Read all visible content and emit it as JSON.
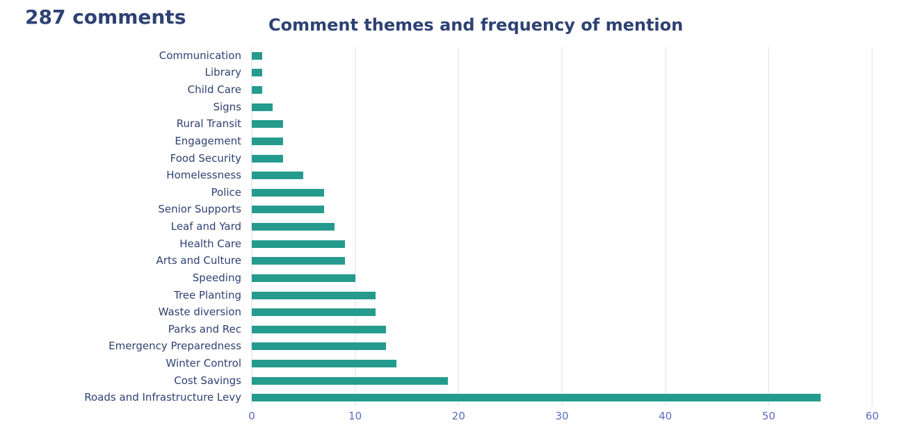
{
  "header": {
    "comment_count_label": "287 comments",
    "title": "Comment themes and frequency of mention"
  },
  "colors": {
    "bar": "#259B8E",
    "heading_text": "#2E4172",
    "category_text": "#2E4172",
    "tick_text": "#5B6BBE",
    "gridline": "#D9DEF3",
    "background": "#FFFFFF"
  },
  "chart_data": {
    "type": "bar",
    "orientation": "horizontal",
    "title": "Comment themes and frequency of mention",
    "categories": [
      "Communication",
      "Library",
      "Child Care",
      "Signs",
      "Rural Transit",
      "Engagement",
      "Food Security",
      "Homelessness",
      "Police",
      "Senior Supports",
      "Leaf and Yard",
      "Health Care",
      "Arts and Culture",
      "Speeding",
      "Tree Planting",
      "Waste diversion",
      "Parks and Rec",
      "Emergency Preparedness",
      "Winter Control",
      "Cost Savings",
      "Roads and Infrastructure Levy"
    ],
    "values": [
      1,
      1,
      1,
      2,
      3,
      3,
      3,
      5,
      7,
      7,
      8,
      9,
      9,
      10,
      12,
      12,
      13,
      13,
      14,
      19,
      55
    ],
    "xlabel": "",
    "ylabel": "",
    "xlim": [
      0,
      60
    ],
    "xticks": [
      0,
      10,
      20,
      30,
      40,
      50,
      60
    ],
    "grid": "vertical",
    "legend": false
  }
}
